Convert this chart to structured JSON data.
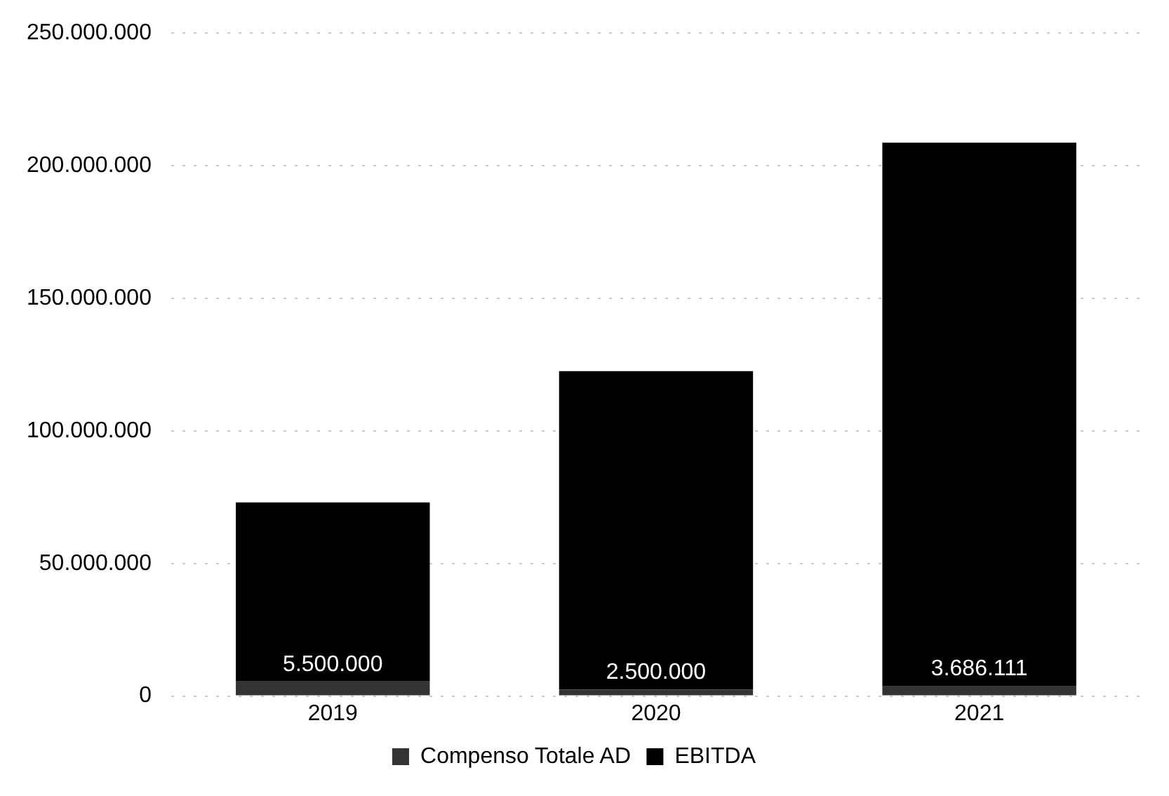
{
  "chart_data": {
    "type": "bar",
    "stacked": true,
    "categories": [
      "2019",
      "2020",
      "2021"
    ],
    "series": [
      {
        "name": "Compenso Totale AD",
        "color": "#333333",
        "values": [
          5500000,
          2500000,
          3686111
        ],
        "value_labels": [
          "5.500.000",
          "2.500.000",
          "3.686.111"
        ]
      },
      {
        "name": "EBITDA",
        "color": "#000000",
        "values": [
          67500000,
          120000000,
          205000000
        ]
      }
    ],
    "ylim": [
      0,
      250000000
    ],
    "yticks": [
      {
        "value": 0,
        "label": "0"
      },
      {
        "value": 50000000,
        "label": "50.000.000"
      },
      {
        "value": 100000000,
        "label": "100.000.000"
      },
      {
        "value": 150000000,
        "label": "150.000.000"
      },
      {
        "value": 200000000,
        "label": "200.000.000"
      },
      {
        "value": 250000000,
        "label": "250.000.000"
      }
    ],
    "grid": "y",
    "legend": "bottom"
  }
}
